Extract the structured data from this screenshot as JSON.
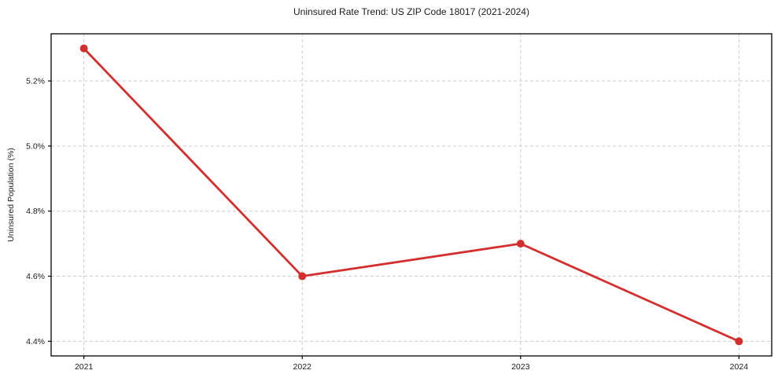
{
  "title": "Uninsured Rate Trend: US ZIP Code 18017 (2021-2024)",
  "chart_data": {
    "type": "line",
    "title": "Uninsured Rate Trend: US ZIP Code 18017 (2021-2024)",
    "xlabel": "",
    "ylabel": "Uninsured Population (%)",
    "x": [
      2021,
      2022,
      2023,
      2024
    ],
    "series": [
      {
        "name": "Uninsured Population (%)",
        "values": [
          5.3,
          4.6,
          4.7,
          4.4
        ]
      }
    ],
    "xticks": [
      2021,
      2022,
      2023,
      2024
    ],
    "xtick_labels": [
      "2021",
      "2022",
      "2023",
      "2024"
    ],
    "yticks": [
      4.4,
      4.6,
      4.8,
      5.0,
      5.2
    ],
    "ytick_labels": [
      "4.4%",
      "4.6%",
      "4.8%",
      "5.0%",
      "5.2%"
    ],
    "xlim": [
      2020.85,
      2024.15
    ],
    "ylim": [
      4.355,
      5.345
    ],
    "grid": true,
    "grid_style": "dashed",
    "legend_position": "none",
    "colors": {
      "line": "#d32f2f",
      "marker": "#d32f2f",
      "grid": "#cccccc",
      "axis": "#000000",
      "text": "#1a1a1a",
      "background": "#ffffff"
    }
  }
}
